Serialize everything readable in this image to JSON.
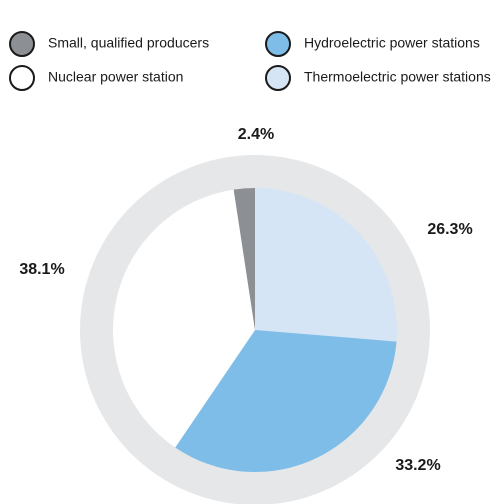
{
  "chart_data": {
    "type": "pie",
    "categories": [
      "Thermoelectric power stations",
      "Hydroelectric power stations",
      "Nuclear power station",
      "Small, qualified producers"
    ],
    "values": [
      26.3,
      33.2,
      38.1,
      2.4
    ],
    "value_labels": [
      "26.3%",
      "33.2%",
      "38.1%",
      "2.4%"
    ],
    "colors": [
      "#d5e5f5",
      "#7dbde8",
      "#ffffff",
      "#8c8f94"
    ]
  }
}
